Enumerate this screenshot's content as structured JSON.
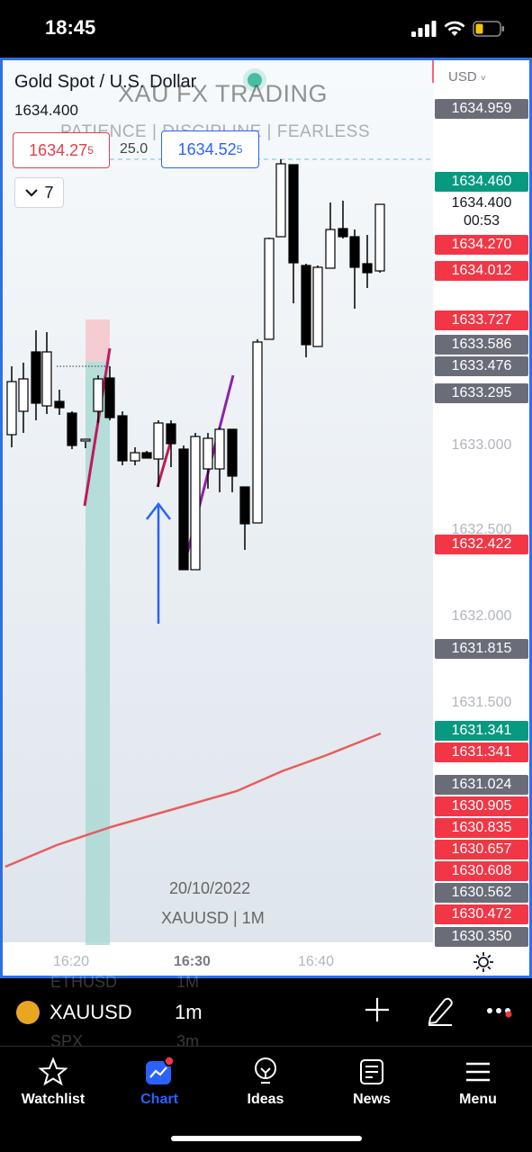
{
  "status": {
    "time": "18:45"
  },
  "chart": {
    "symbol_title": "Gold Spot / U.S. Dollar",
    "current_price": "1634.400",
    "watermark_title": "XAU FX TRADING",
    "watermark_subtitle": "PATIENCE  |  DISCIPLINE  |  FEARLESS",
    "bid_main": "1634.27",
    "bid_pip": "5",
    "spread": "25.0",
    "ask_main": "1634.52",
    "ask_pip": "5",
    "indicators_count": "7",
    "currency": "USD",
    "date": "20/10/2022",
    "interval": "XAUUSD | 1M",
    "time_labels": [
      "16:20",
      "16:30",
      "16:40"
    ]
  },
  "price_axis": {
    "labels": [
      {
        "text": "1634.959",
        "color": "grey"
      },
      {
        "text": "1634.460",
        "color": "green"
      },
      {
        "text": "1634.270",
        "color": "red"
      },
      {
        "text": "1634.012",
        "color": "red"
      },
      {
        "text": "1633.727",
        "color": "red"
      },
      {
        "text": "1633.586",
        "color": "grey"
      },
      {
        "text": "1633.476",
        "color": "grey"
      },
      {
        "text": "1633.295",
        "color": "grey"
      },
      {
        "text": "1633.000",
        "color": "plain"
      },
      {
        "text": "1632.500",
        "color": "plain"
      },
      {
        "text": "1632.422",
        "color": "red"
      },
      {
        "text": "1632.000",
        "color": "plain"
      },
      {
        "text": "1631.815",
        "color": "grey"
      },
      {
        "text": "1631.500",
        "color": "plain"
      },
      {
        "text": "1631.341",
        "color": "green"
      },
      {
        "text": "1631.341",
        "color": "red"
      },
      {
        "text": "1631.024",
        "color": "grey"
      },
      {
        "text": "1630.905",
        "color": "red"
      },
      {
        "text": "1630.835",
        "color": "red"
      },
      {
        "text": "1630.657",
        "color": "red"
      },
      {
        "text": "1630.608",
        "color": "red"
      },
      {
        "text": "1630.562",
        "color": "grey"
      },
      {
        "text": "1630.472",
        "color": "red"
      },
      {
        "text": "1630.350",
        "color": "grey"
      }
    ],
    "current_price": "1634.400",
    "countdown": "00:53"
  },
  "symbol_bar": {
    "symbol": "XAUUSD",
    "interval": "1m",
    "ghost_symbols": [
      "ETHUSD",
      "SPX"
    ],
    "ghost_intervals": [
      "1M",
      "3m"
    ]
  },
  "nav": {
    "items": [
      {
        "label": "Watchlist",
        "icon": "star-icon"
      },
      {
        "label": "Chart",
        "icon": "chart-icon"
      },
      {
        "label": "Ideas",
        "icon": "lightbulb-icon"
      },
      {
        "label": "News",
        "icon": "news-icon"
      },
      {
        "label": "Menu",
        "icon": "hamburger-icon"
      }
    ],
    "active": "Chart"
  },
  "colors": {
    "accent": "#2962ff",
    "up": "#089981",
    "down": "#f23645",
    "frame": "#2f6fe6"
  }
}
